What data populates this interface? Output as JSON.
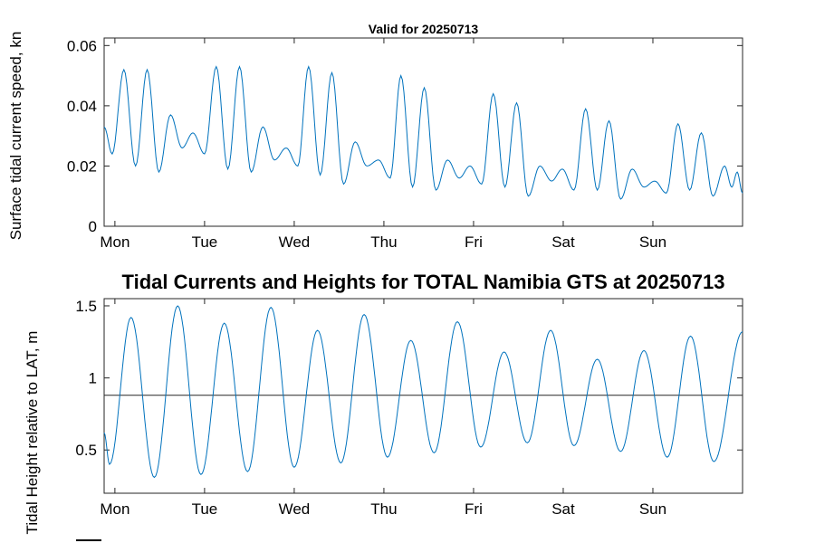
{
  "figure": {
    "background": "#ffffff",
    "axis_color": "#262626",
    "line_color": "#0072BD"
  },
  "chart_data": [
    {
      "id": "surface-current-speed",
      "type": "line",
      "title": "Valid for 20250713",
      "ylabel": "Surface tidal current speed, kn",
      "xlabel": "",
      "legend": "none",
      "grid": false,
      "ylim": [
        0,
        0.0625
      ],
      "ytick_values": [
        0,
        0.02,
        0.04,
        0.06
      ],
      "ytick_labels": [
        "0",
        "0.02",
        "0.04",
        "0.06"
      ],
      "xlim": [
        0,
        7.12
      ],
      "xtick_values": [
        0.12,
        1.12,
        2.12,
        3.12,
        4.12,
        5.12,
        6.12
      ],
      "xtick_labels": [
        "Mon",
        "Tue",
        "Wed",
        "Thu",
        "Fri",
        "Sat",
        "Sun"
      ],
      "series": [
        {
          "name": "current-speed-kn",
          "interpolation": "cosine-extrema",
          "points": [
            [
              0.0,
              0.033
            ],
            [
              0.09,
              0.024
            ],
            [
              0.22,
              0.052
            ],
            [
              0.35,
              0.02
            ],
            [
              0.48,
              0.052
            ],
            [
              0.61,
              0.018
            ],
            [
              0.74,
              0.037
            ],
            [
              0.87,
              0.026
            ],
            [
              0.99,
              0.031
            ],
            [
              1.12,
              0.024
            ],
            [
              1.25,
              0.053
            ],
            [
              1.38,
              0.019
            ],
            [
              1.51,
              0.053
            ],
            [
              1.64,
              0.018
            ],
            [
              1.77,
              0.033
            ],
            [
              1.9,
              0.022
            ],
            [
              2.03,
              0.026
            ],
            [
              2.16,
              0.02
            ],
            [
              2.28,
              0.053
            ],
            [
              2.41,
              0.017
            ],
            [
              2.54,
              0.051
            ],
            [
              2.67,
              0.014
            ],
            [
              2.8,
              0.028
            ],
            [
              2.93,
              0.02
            ],
            [
              3.06,
              0.022
            ],
            [
              3.19,
              0.016
            ],
            [
              3.31,
              0.05
            ],
            [
              3.44,
              0.013
            ],
            [
              3.57,
              0.046
            ],
            [
              3.7,
              0.012
            ],
            [
              3.83,
              0.022
            ],
            [
              3.96,
              0.016
            ],
            [
              4.08,
              0.02
            ],
            [
              4.21,
              0.014
            ],
            [
              4.34,
              0.044
            ],
            [
              4.47,
              0.013
            ],
            [
              4.6,
              0.041
            ],
            [
              4.73,
              0.01
            ],
            [
              4.86,
              0.02
            ],
            [
              4.99,
              0.015
            ],
            [
              5.11,
              0.019
            ],
            [
              5.24,
              0.012
            ],
            [
              5.37,
              0.039
            ],
            [
              5.5,
              0.012
            ],
            [
              5.63,
              0.035
            ],
            [
              5.76,
              0.009
            ],
            [
              5.89,
              0.019
            ],
            [
              6.02,
              0.013
            ],
            [
              6.14,
              0.015
            ],
            [
              6.27,
              0.011
            ],
            [
              6.4,
              0.034
            ],
            [
              6.53,
              0.012
            ],
            [
              6.66,
              0.031
            ],
            [
              6.79,
              0.01
            ],
            [
              6.92,
              0.02
            ],
            [
              7.0,
              0.013
            ],
            [
              7.06,
              0.018
            ],
            [
              7.12,
              0.011
            ]
          ]
        }
      ]
    },
    {
      "id": "tidal-height",
      "type": "line",
      "title": "Tidal Currents and Heights for TOTAL Namibia GTS at 20250713",
      "ylabel": "Tidal Height relative to LAT, m",
      "xlabel": "",
      "legend": "none",
      "grid": false,
      "ylim": [
        0.2,
        1.55
      ],
      "ytick_values": [
        0.5,
        1,
        1.5
      ],
      "ytick_labels": [
        "0.5",
        "1",
        "1.5"
      ],
      "xlim": [
        0,
        7.12
      ],
      "xtick_values": [
        0.12,
        1.12,
        2.12,
        3.12,
        4.12,
        5.12,
        6.12
      ],
      "xtick_labels": [
        "Mon",
        "Tue",
        "Wed",
        "Thu",
        "Fri",
        "Sat",
        "Sun"
      ],
      "ref_line": {
        "name": "mean-level",
        "value": 0.88
      },
      "series": [
        {
          "name": "tidal-height-m",
          "interpolation": "cosine-extrema",
          "points": [
            [
              0.0,
              0.62
            ],
            [
              0.06,
              0.4
            ],
            [
              0.3,
              1.42
            ],
            [
              0.56,
              0.31
            ],
            [
              0.82,
              1.5
            ],
            [
              1.08,
              0.33
            ],
            [
              1.34,
              1.38
            ],
            [
              1.6,
              0.35
            ],
            [
              1.86,
              1.49
            ],
            [
              2.12,
              0.38
            ],
            [
              2.38,
              1.33
            ],
            [
              2.64,
              0.41
            ],
            [
              2.9,
              1.44
            ],
            [
              3.16,
              0.45
            ],
            [
              3.42,
              1.26
            ],
            [
              3.68,
              0.48
            ],
            [
              3.94,
              1.39
            ],
            [
              4.2,
              0.52
            ],
            [
              4.46,
              1.18
            ],
            [
              4.72,
              0.55
            ],
            [
              4.98,
              1.33
            ],
            [
              5.24,
              0.53
            ],
            [
              5.5,
              1.13
            ],
            [
              5.76,
              0.49
            ],
            [
              6.02,
              1.19
            ],
            [
              6.28,
              0.45
            ],
            [
              6.54,
              1.29
            ],
            [
              6.8,
              0.42
            ],
            [
              7.12,
              1.32
            ]
          ]
        }
      ]
    }
  ]
}
